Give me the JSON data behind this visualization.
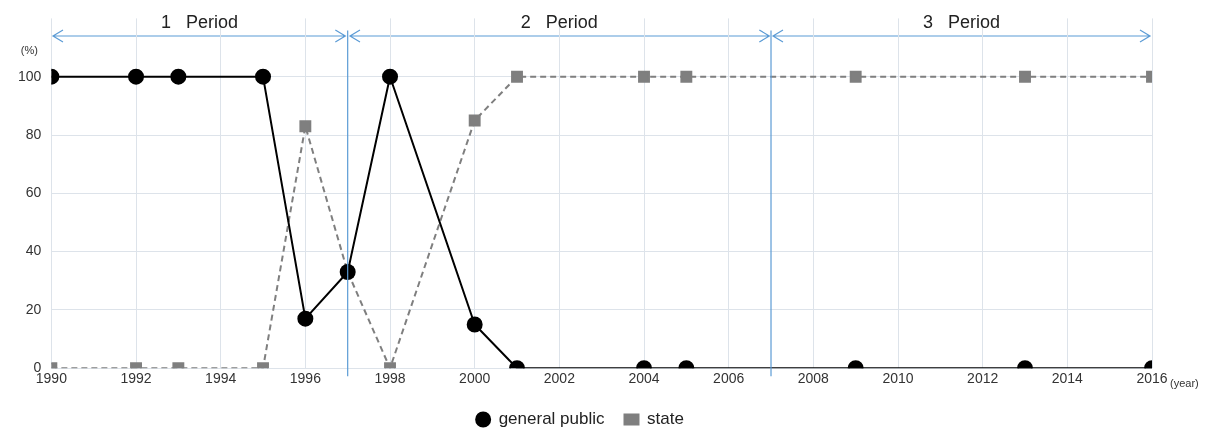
{
  "chart_data": {
    "type": "line",
    "xlabel": "(year)",
    "ylabel": "(%)",
    "x": [
      1990,
      1992,
      1993,
      1995,
      1996,
      1997,
      1998,
      2000,
      2001,
      2004,
      2005,
      2009,
      2013,
      2016
    ],
    "series": [
      {
        "name": "general public",
        "color": "#000000",
        "marker": "circle",
        "line_style": "solid",
        "values": [
          100,
          100,
          100,
          100,
          17,
          33,
          100,
          15,
          0,
          0,
          0,
          0,
          0,
          0
        ]
      },
      {
        "name": "state",
        "color": "#7f7f7f",
        "marker": "square",
        "line_style": "dashed",
        "values": [
          0,
          0,
          0,
          0,
          83,
          33,
          0,
          85,
          100,
          100,
          100,
          100,
          100,
          100
        ]
      }
    ],
    "xlim": [
      1990,
      2016
    ],
    "xticks": [
      1990,
      1992,
      1994,
      1996,
      1998,
      2000,
      2002,
      2004,
      2006,
      2008,
      2010,
      2012,
      2014,
      2016
    ],
    "ylim": [
      0,
      120
    ],
    "yticks": [
      0,
      20,
      40,
      60,
      80,
      100
    ],
    "grid": true,
    "legend": "bottom",
    "ref_lines": [
      {
        "axis": "x",
        "value": 1997,
        "color": "#5b9bd5"
      },
      {
        "axis": "x",
        "value": 2007,
        "color": "#5b9bd5"
      }
    ],
    "annotations": [
      "1   Period",
      "2   Period",
      "3   Period"
    ]
  }
}
